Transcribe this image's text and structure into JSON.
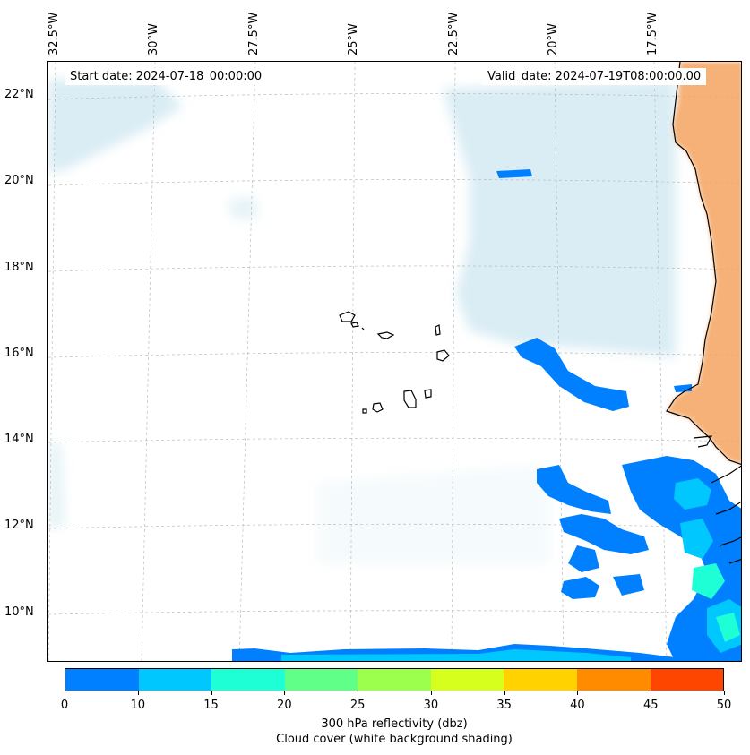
{
  "map": {
    "start_date": "Start date: 2024-07-18_00:00:00",
    "valid_date": "Valid_date: 2024-07-19T08:00:00.00",
    "longitude_labels": [
      "32.5°W",
      "30°W",
      "27.5°W",
      "25°W",
      "22.5°W",
      "20°W",
      "17.5°W"
    ],
    "latitude_labels": [
      "22°N",
      "20°N",
      "18°N",
      "16°N",
      "14°N",
      "12°N",
      "10°N"
    ],
    "land_color": "#f4a460",
    "cloud_color": "#add8e6"
  },
  "colorbar": {
    "ticks": [
      "0",
      "10",
      "15",
      "20",
      "25",
      "30",
      "35",
      "40",
      "45",
      "50"
    ],
    "colors": [
      "#0080ff",
      "#00c8ff",
      "#1effd6",
      "#5fff88",
      "#9dff4d",
      "#d6ff1e",
      "#ffd200",
      "#ff8c00",
      "#ff4600"
    ],
    "label": "300 hPa reflectivity (dbz)",
    "sublabel": "Cloud cover (white background shading)"
  }
}
